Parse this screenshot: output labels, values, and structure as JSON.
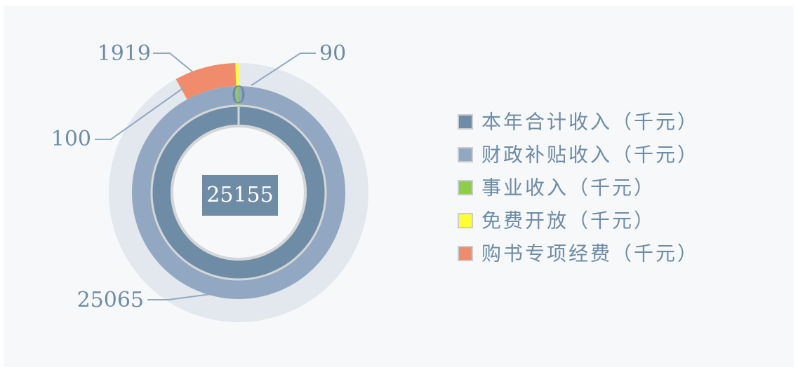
{
  "chart_data": {
    "type": "nested-donut",
    "series": [
      {
        "name": "本年合计收入（千元）",
        "color": "#6e8ca5",
        "ring": 0,
        "values": [
          25155
        ]
      },
      {
        "name": "财政补贴收入（千元）",
        "color": "#92a8c2",
        "ring": 1,
        "values": [
          25065
        ]
      },
      {
        "name": "事业收入（千元）",
        "color": "#8fce4a",
        "ring": 1,
        "values": [
          90
        ]
      },
      {
        "name": "免费开放（千元）",
        "color": "#ffff33",
        "ring": 2,
        "values": [
          100
        ]
      },
      {
        "name": "购书专项经费（千元）",
        "color": "#f08c6c",
        "ring": 2,
        "values": [
          1919
        ]
      }
    ],
    "annotation": "0"
  }
}
